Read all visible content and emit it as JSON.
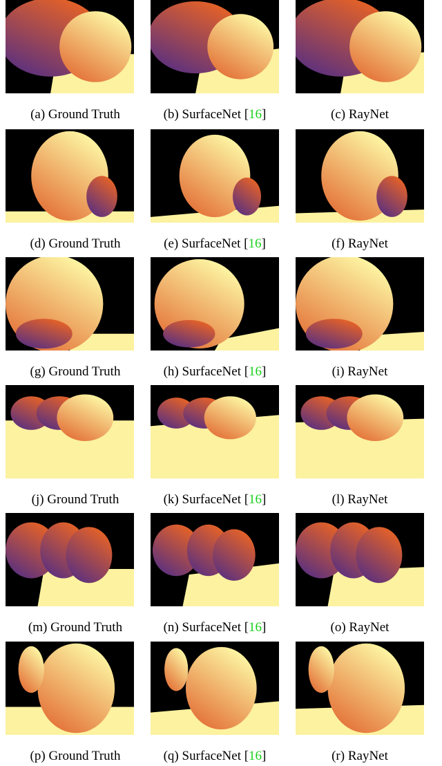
{
  "rows": [
    {
      "captions": [
        {
          "label": "(a) Ground Truth",
          "cite": ""
        },
        {
          "label": "(b) SurfaceNet [",
          "cite": "16",
          "close": "]"
        },
        {
          "label": "(c) RayNet",
          "cite": ""
        }
      ]
    },
    {
      "captions": [
        {
          "label": "(d) Ground Truth",
          "cite": ""
        },
        {
          "label": "(e) SurfaceNet [",
          "cite": "16",
          "close": "]"
        },
        {
          "label": "(f) RayNet",
          "cite": ""
        }
      ]
    },
    {
      "captions": [
        {
          "label": "(g) Ground Truth",
          "cite": ""
        },
        {
          "label": "(h) SurfaceNet [",
          "cite": "16",
          "close": "]"
        },
        {
          "label": "(i) RayNet",
          "cite": ""
        }
      ]
    },
    {
      "captions": [
        {
          "label": "(j) Ground Truth",
          "cite": ""
        },
        {
          "label": "(k) SurfaceNet [",
          "cite": "16",
          "close": "]"
        },
        {
          "label": "(l) RayNet",
          "cite": ""
        }
      ]
    },
    {
      "captions": [
        {
          "label": "(m) Ground Truth",
          "cite": ""
        },
        {
          "label": "(n) SurfaceNet [",
          "cite": "16",
          "close": "]"
        },
        {
          "label": "(o) RayNet",
          "cite": ""
        }
      ]
    },
    {
      "captions": [
        {
          "label": "(p) Ground Truth",
          "cite": ""
        },
        {
          "label": "(q) SurfaceNet [",
          "cite": "16",
          "close": "]"
        },
        {
          "label": "(r) RayNet",
          "cite": ""
        }
      ]
    }
  ],
  "colors": {
    "background": "#000000",
    "depth_near": "#4a2a8a",
    "depth_mid": "#e0602a",
    "depth_far": "#fcf2a0",
    "citation": "#19d019"
  }
}
